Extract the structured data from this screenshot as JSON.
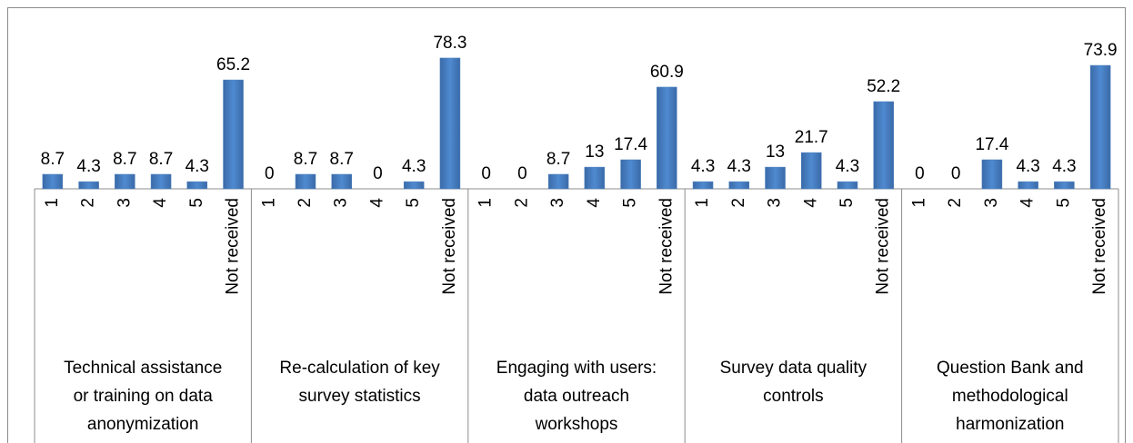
{
  "chart_data": {
    "type": "bar",
    "color": "#4f81bd",
    "groups": [
      {
        "label": [
          "Technical assistance",
          "or training on data",
          "anonymization"
        ],
        "categories": [
          "1",
          "2",
          "3",
          "4",
          "5",
          "Not received"
        ],
        "values": [
          8.7,
          4.3,
          8.7,
          8.7,
          4.3,
          65.2
        ]
      },
      {
        "label": [
          "Re-calculation of key",
          "survey statistics"
        ],
        "categories": [
          "1",
          "2",
          "3",
          "4",
          "5",
          "Not received"
        ],
        "values": [
          0,
          8.7,
          8.7,
          0,
          4.3,
          78.3
        ]
      },
      {
        "label": [
          "Engaging with users:",
          "data outreach",
          "workshops"
        ],
        "categories": [
          "1",
          "2",
          "3",
          "4",
          "5",
          "Not received"
        ],
        "values": [
          0,
          0,
          8.7,
          13,
          17.4,
          60.9
        ]
      },
      {
        "label": [
          "Survey data quality",
          "controls"
        ],
        "categories": [
          "1",
          "2",
          "3",
          "4",
          "5",
          "Not received"
        ],
        "values": [
          4.3,
          4.3,
          13,
          21.7,
          4.3,
          52.2
        ]
      },
      {
        "label": [
          "Question Bank and",
          "methodological",
          "harmonization"
        ],
        "categories": [
          "1",
          "2",
          "3",
          "4",
          "5",
          "Not received"
        ],
        "values": [
          0,
          0,
          17.4,
          4.3,
          4.3,
          73.9
        ]
      }
    ]
  }
}
